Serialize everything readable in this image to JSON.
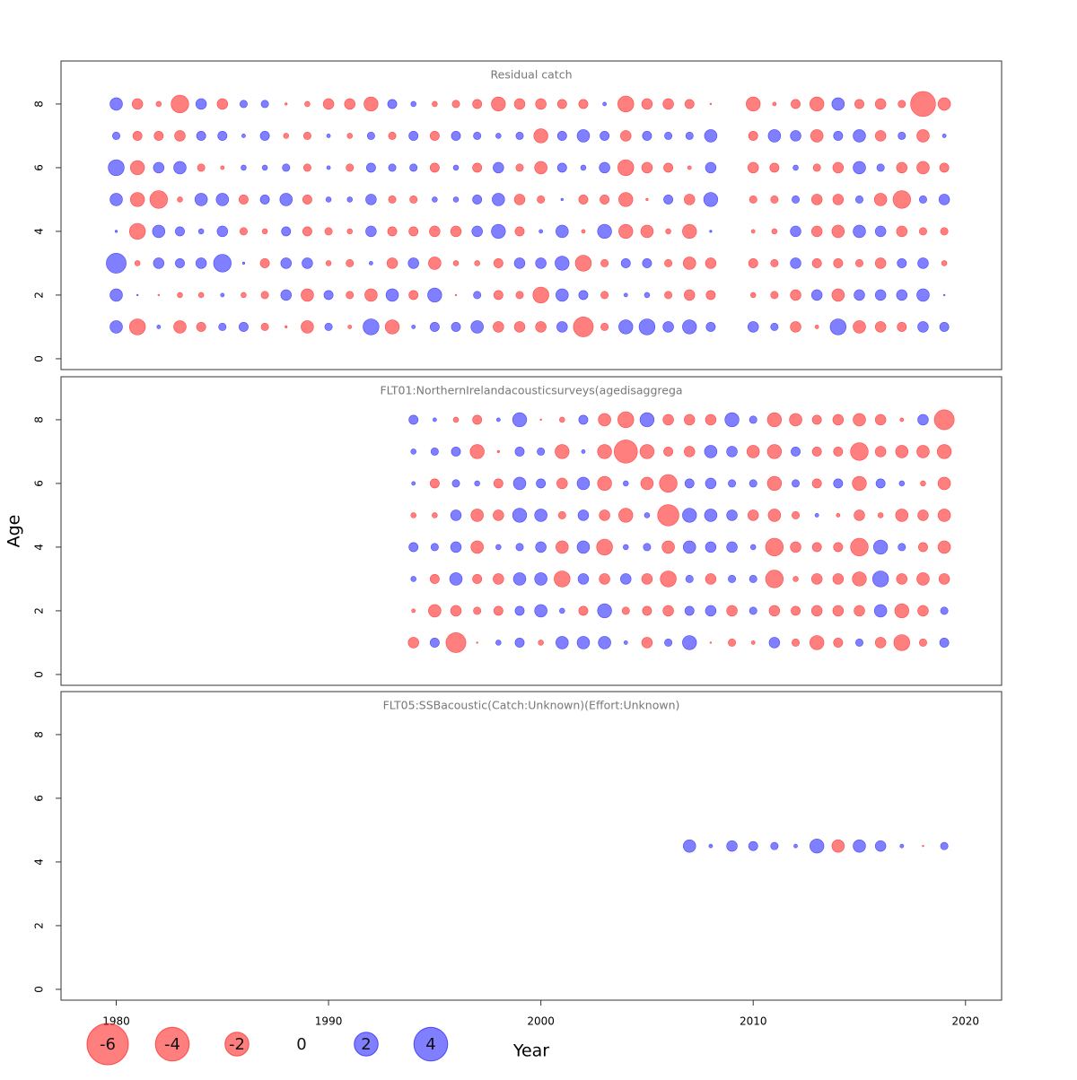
{
  "axes": {
    "xlabel": "Year",
    "ylabel": "Age",
    "xlim": [
      1977.4,
      2021.7
    ],
    "xticks": [
      1980,
      1990,
      2000,
      2010,
      2020
    ],
    "negative_color": "#ff0000",
    "positive_color": "#0000ff"
  },
  "legend": [
    -6,
    -4,
    -2,
    0,
    2,
    4
  ],
  "chart_data": [
    {
      "type": "bubble",
      "title": "Residual catch",
      "x": [
        1980,
        1981,
        1982,
        1983,
        1984,
        1985,
        1986,
        1987,
        1988,
        1989,
        1990,
        1991,
        1992,
        1993,
        1994,
        1995,
        1996,
        1997,
        1998,
        1999,
        2000,
        2001,
        2002,
        2003,
        2004,
        2005,
        2006,
        2007,
        2008,
        2010,
        2011,
        2012,
        2013,
        2014,
        2015,
        2016,
        2017,
        2018,
        2019
      ],
      "ages": [
        8,
        7,
        6,
        5,
        4,
        3,
        2,
        1
      ],
      "residuals": [
        [
          0.55,
          -0.4,
          -0.1,
          -1.1,
          0.4,
          -0.4,
          0.2,
          0.2,
          -0.02,
          -0.1,
          -0.4,
          -0.4,
          -0.7,
          0.3,
          0.1,
          -0.1,
          -0.2,
          -0.3,
          -0.7,
          -0.4,
          -0.4,
          -0.3,
          -0.3,
          0.05,
          -0.9,
          -0.4,
          -0.4,
          -0.3,
          -0.01,
          -0.7,
          -0.05,
          -0.3,
          -0.7,
          0.55,
          -0.3,
          -0.4,
          -0.2,
          -2.2,
          -0.55
        ],
        [
          0.2,
          -0.3,
          -0.3,
          -0.4,
          0.3,
          0.3,
          0.05,
          0.3,
          -0.1,
          -0.2,
          0.05,
          -0.1,
          0.2,
          -0.2,
          0.3,
          -0.3,
          0.3,
          0.2,
          0.1,
          0.2,
          -0.7,
          0.3,
          0.55,
          0.3,
          -0.4,
          0.3,
          0.2,
          0.2,
          0.55,
          -0.3,
          0.55,
          0.4,
          -0.55,
          0.3,
          0.55,
          -0.4,
          0.2,
          -0.55,
          0.05
        ],
        [
          0.9,
          -0.7,
          0.4,
          0.55,
          -0.2,
          -0.05,
          0.1,
          0.1,
          0.2,
          -0.2,
          0.05,
          -0.2,
          0.3,
          0.2,
          0.2,
          -0.3,
          0.1,
          -0.3,
          0.4,
          -0.2,
          -0.55,
          0.3,
          0.1,
          0.4,
          -0.9,
          -0.4,
          -0.3,
          -0.05,
          0.4,
          -0.4,
          -0.3,
          0.1,
          -0.2,
          -0.4,
          0.55,
          0.2,
          -0.4,
          -0.55,
          -0.3
        ],
        [
          0.55,
          -0.7,
          -1.1,
          -0.1,
          0.55,
          0.55,
          -0.3,
          0.3,
          0.55,
          -0.3,
          0.1,
          0.1,
          0.4,
          -0.2,
          -0.2,
          0.1,
          0.1,
          0.3,
          0.55,
          -0.4,
          -0.2,
          0.02,
          -0.3,
          -0.3,
          -0.7,
          -0.02,
          0.3,
          -0.4,
          0.7,
          -0.2,
          -0.2,
          0.2,
          -0.4,
          -0.4,
          0.2,
          -0.55,
          -1.1,
          0.2,
          0.4
        ],
        [
          0.02,
          -0.9,
          0.55,
          0.3,
          0.1,
          0.4,
          -0.2,
          -0.1,
          0.3,
          -0.3,
          -0.2,
          -0.1,
          0.4,
          -0.3,
          -0.3,
          -0.4,
          -0.4,
          0.4,
          0.7,
          -0.3,
          0.05,
          0.55,
          -0.05,
          0.7,
          -0.7,
          -0.55,
          -0.1,
          -0.7,
          0.02,
          -0.05,
          -0.1,
          0.4,
          -0.4,
          -0.55,
          0.55,
          0.4,
          -0.4,
          -0.2,
          -0.2
        ],
        [
          1.4,
          -0.1,
          0.4,
          0.3,
          0.4,
          1.1,
          0.02,
          -0.3,
          0.4,
          0.4,
          -0.1,
          -0.2,
          0.05,
          -0.4,
          0.4,
          -0.55,
          -0.1,
          -0.1,
          -0.3,
          0.4,
          0.4,
          0.7,
          -0.9,
          -0.2,
          0.3,
          0.3,
          -0.2,
          -0.55,
          -0.4,
          -0.3,
          -0.2,
          0.4,
          -0.3,
          -0.3,
          -0.2,
          -0.4,
          0.3,
          0.4,
          -0.1
        ],
        [
          0.55,
          0.01,
          -0.01,
          -0.1,
          -0.1,
          0.05,
          -0.1,
          -0.2,
          0.4,
          -0.55,
          0.3,
          -0.2,
          -0.55,
          0.55,
          -0.3,
          0.7,
          -0.01,
          0.2,
          -0.3,
          -0.2,
          -0.9,
          0.55,
          0.3,
          -0.2,
          0.05,
          0.1,
          -0.2,
          -0.4,
          -0.3,
          -0.1,
          -0.2,
          -0.4,
          0.4,
          -0.55,
          0.4,
          0.4,
          0.4,
          0.55,
          0.01
        ],
        [
          0.55,
          -0.9,
          0.05,
          -0.55,
          -0.3,
          0.2,
          0.3,
          -0.2,
          -0.02,
          -0.55,
          0.2,
          -0.05,
          0.9,
          -0.7,
          0.05,
          0.3,
          0.3,
          0.55,
          -0.4,
          -0.4,
          -0.4,
          0.4,
          -1.4,
          -0.2,
          0.7,
          0.9,
          0.4,
          0.7,
          0.3,
          0.4,
          0.2,
          -0.4,
          -0.05,
          0.9,
          -0.55,
          -0.4,
          -0.3,
          0.4,
          0.3
        ]
      ],
      "ylim": [
        -0.34,
        9.35
      ],
      "yticks": [
        0,
        2,
        4,
        6,
        8
      ]
    },
    {
      "type": "bubble",
      "title": "FLT01:NorthernIrelandacousticsurveys(agedisaggrega",
      "x": [
        1994,
        1995,
        1996,
        1997,
        1998,
        1999,
        2000,
        2001,
        2002,
        2003,
        2004,
        2005,
        2006,
        2007,
        2008,
        2009,
        2010,
        2011,
        2012,
        2013,
        2014,
        2015,
        2016,
        2017,
        2018,
        2019
      ],
      "ages": [
        8,
        7,
        6,
        5,
        4,
        3,
        2,
        1
      ],
      "residuals": [
        [
          0.3,
          0.05,
          -0.1,
          -0.3,
          0.05,
          0.7,
          -0.01,
          -0.1,
          0.3,
          -0.55,
          -0.9,
          0.7,
          -0.4,
          -0.4,
          -0.4,
          0.7,
          0.2,
          -0.7,
          -0.55,
          -0.3,
          -0.4,
          -0.55,
          -0.4,
          -0.05,
          0.4,
          -1.4
        ],
        [
          0.1,
          0.2,
          0.3,
          -0.7,
          -0.02,
          0.3,
          0.2,
          -0.7,
          0.05,
          -0.7,
          -1.9,
          -0.7,
          -0.3,
          -0.4,
          0.55,
          0.4,
          -0.55,
          -0.7,
          0.3,
          -0.3,
          -0.3,
          -1.1,
          -0.4,
          -0.55,
          -0.55,
          -0.7
        ],
        [
          0.05,
          -0.3,
          0.2,
          0.1,
          -0.3,
          0.55,
          0.3,
          -0.4,
          0.55,
          -0.7,
          0.1,
          -0.55,
          -1.1,
          0.3,
          0.4,
          0.2,
          0.2,
          -0.7,
          0.2,
          -0.3,
          0.3,
          -0.7,
          0.3,
          0.1,
          -0.1,
          -0.55
        ],
        [
          -0.1,
          -0.1,
          0.4,
          -0.55,
          -0.4,
          0.7,
          0.55,
          -0.2,
          0.4,
          -0.4,
          -0.7,
          0.1,
          -1.6,
          0.7,
          0.55,
          0.4,
          -0.4,
          -0.55,
          -0.2,
          0.05,
          -0.05,
          -0.4,
          -0.1,
          -0.55,
          -0.4,
          -0.55
        ],
        [
          0.3,
          0.2,
          0.4,
          -0.55,
          0.1,
          0.2,
          0.4,
          -0.55,
          0.55,
          -0.9,
          0.1,
          0.2,
          -0.55,
          0.55,
          0.4,
          0.4,
          0.1,
          -1.1,
          -0.4,
          -0.3,
          -0.3,
          -1.1,
          0.7,
          0.2,
          -0.3,
          -0.55
        ],
        [
          0.1,
          -0.3,
          0.55,
          -0.3,
          -0.4,
          0.55,
          0.55,
          -0.9,
          0.4,
          -0.4,
          0.4,
          -0.4,
          -0.9,
          0.2,
          -0.4,
          0.2,
          0.2,
          -1.1,
          -0.1,
          -0.4,
          -0.4,
          -0.7,
          0.9,
          -0.4,
          -0.55,
          -0.4
        ],
        [
          -0.05,
          -0.55,
          -0.4,
          -0.2,
          -0.3,
          0.3,
          0.55,
          0.1,
          -0.3,
          0.7,
          -0.2,
          -0.3,
          -0.4,
          0.3,
          0.4,
          -0.4,
          0.2,
          -0.4,
          -0.3,
          -0.4,
          -0.4,
          -0.4,
          0.55,
          -0.7,
          -0.4,
          0.2
        ],
        [
          -0.4,
          0.3,
          -1.4,
          -0.01,
          0.1,
          0.3,
          -0.1,
          0.55,
          0.55,
          0.55,
          0.05,
          -0.4,
          0.2,
          0.7,
          -0.01,
          -0.2,
          -0.05,
          0.4,
          -0.2,
          -0.7,
          -0.3,
          0.2,
          -0.4,
          -0.9,
          -0.2,
          0.3
        ]
      ],
      "ylim": [
        -0.34,
        9.35
      ],
      "yticks": [
        0,
        2,
        4,
        6,
        8
      ]
    },
    {
      "type": "bubble",
      "title": "FLT05:SSBacoustic(Catch:Unknown)(Effort:Unknown)",
      "x": [
        2007,
        2008,
        2009,
        2010,
        2011,
        2012,
        2013,
        2014,
        2015,
        2016,
        2017,
        2018,
        2019
      ],
      "ages": [
        4.5
      ],
      "residuals": [
        [
          0.55,
          0.05,
          0.4,
          0.3,
          0.2,
          0.05,
          0.7,
          -0.55,
          0.55,
          0.4,
          0.05,
          -0.01,
          0.2
        ]
      ],
      "ylim": [
        -0.34,
        9.35
      ],
      "yticks": [
        0,
        2,
        4,
        6,
        8
      ]
    }
  ]
}
